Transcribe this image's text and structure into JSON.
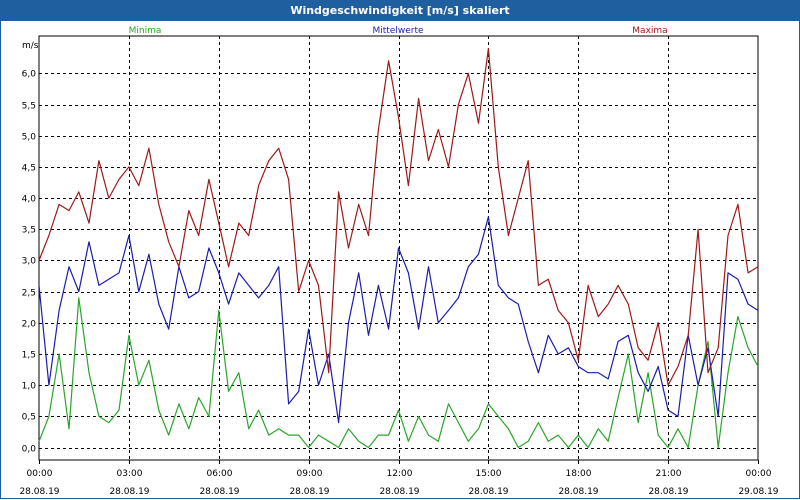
{
  "window": {
    "title": "Windgeschwindigkeit [m/s] skaliert"
  },
  "chart_data": {
    "type": "line",
    "title": "Windgeschwindigkeit [m/s] skaliert",
    "ylabel": "m/s",
    "xlabel": "",
    "grid": true,
    "legend_placement": "top",
    "ylim": [
      -0.2,
      6.6
    ],
    "xlim_hours": [
      0,
      24
    ],
    "y_ticks": [
      "0,0",
      "0,5",
      "1,0",
      "1,5",
      "2,0",
      "2,5",
      "3,0",
      "3,5",
      "4,0",
      "4,5",
      "5,0",
      "5,5",
      "6,0"
    ],
    "x_ticks": [
      {
        "time": "00:00",
        "date": "28.08.19"
      },
      {
        "time": "03:00",
        "date": "28.08.19"
      },
      {
        "time": "06:00",
        "date": "28.08.19"
      },
      {
        "time": "09:00",
        "date": "28.08.19"
      },
      {
        "time": "12:00",
        "date": "28.08.19"
      },
      {
        "time": "15:00",
        "date": "28.08.19"
      },
      {
        "time": "18:00",
        "date": "28.08.19"
      },
      {
        "time": "21:00",
        "date": "28.08.19"
      },
      {
        "time": "00:00",
        "date": "29.08.19"
      }
    ],
    "series": [
      {
        "name": "Minima",
        "color": "#2aa52a",
        "x": [
          0,
          0.33,
          0.67,
          1,
          1.33,
          1.67,
          2,
          2.33,
          2.67,
          3,
          3.33,
          3.67,
          4,
          4.33,
          4.67,
          5,
          5.33,
          5.67,
          6,
          6.33,
          6.67,
          7,
          7.33,
          7.67,
          8,
          8.33,
          8.67,
          9,
          9.33,
          9.67,
          10,
          10.33,
          10.67,
          11,
          11.33,
          11.67,
          12,
          12.33,
          12.67,
          13,
          13.33,
          13.67,
          14,
          14.33,
          14.67,
          15,
          15.33,
          15.67,
          16,
          16.33,
          16.67,
          17,
          17.33,
          17.67,
          18,
          18.33,
          18.67,
          19,
          19.33,
          19.67,
          20,
          20.33,
          20.67,
          21,
          21.33,
          21.67,
          22,
          22.33,
          22.67,
          23,
          23.33,
          23.67,
          24
        ],
        "values": [
          0.1,
          0.5,
          1.5,
          0.3,
          2.4,
          1.2,
          0.5,
          0.4,
          0.6,
          1.8,
          1.0,
          1.4,
          0.6,
          0.2,
          0.7,
          0.3,
          0.8,
          0.5,
          2.2,
          0.9,
          1.2,
          0.3,
          0.6,
          0.2,
          0.3,
          0.2,
          0.2,
          0,
          0.2,
          0.1,
          0,
          0.3,
          0.1,
          0,
          0.2,
          0.2,
          0.6,
          0.1,
          0.5,
          0.2,
          0.1,
          0.7,
          0.4,
          0.1,
          0.3,
          0.7,
          0.5,
          0.3,
          0,
          0.1,
          0.4,
          0.1,
          0.2,
          0,
          0.2,
          0,
          0.3,
          0.1,
          0.8,
          1.5,
          0.4,
          1.2,
          0.2,
          0,
          0.3,
          0,
          1.0,
          1.7,
          0,
          1.2,
          2.1,
          1.6,
          1.3
        ]
      },
      {
        "name": "Mittelwerte",
        "color": "#1c1cb0",
        "x": [
          0,
          0.33,
          0.67,
          1,
          1.33,
          1.67,
          2,
          2.33,
          2.67,
          3,
          3.33,
          3.67,
          4,
          4.33,
          4.67,
          5,
          5.33,
          5.67,
          6,
          6.33,
          6.67,
          7,
          7.33,
          7.67,
          8,
          8.33,
          8.67,
          9,
          9.33,
          9.67,
          10,
          10.33,
          10.67,
          11,
          11.33,
          11.67,
          12,
          12.33,
          12.67,
          13,
          13.33,
          13.67,
          14,
          14.33,
          14.67,
          15,
          15.33,
          15.67,
          16,
          16.33,
          16.67,
          17,
          17.33,
          17.67,
          18,
          18.33,
          18.67,
          19,
          19.33,
          19.67,
          20,
          20.33,
          20.67,
          21,
          21.33,
          21.67,
          22,
          22.33,
          22.67,
          23,
          23.33,
          23.67,
          24
        ],
        "values": [
          2.6,
          1.0,
          2.2,
          2.9,
          2.5,
          3.3,
          2.6,
          2.7,
          2.8,
          3.4,
          2.5,
          3.1,
          2.3,
          1.9,
          2.9,
          2.4,
          2.5,
          3.2,
          2.8,
          2.3,
          2.8,
          2.6,
          2.4,
          2.6,
          2.9,
          0.7,
          0.9,
          1.9,
          1.0,
          1.5,
          0.4,
          2.0,
          2.8,
          1.8,
          2.6,
          1.9,
          3.2,
          2.8,
          1.9,
          2.9,
          2.0,
          2.2,
          2.4,
          2.9,
          3.1,
          3.7,
          2.6,
          2.4,
          2.3,
          1.7,
          1.2,
          1.8,
          1.5,
          1.6,
          1.3,
          1.2,
          1.2,
          1.1,
          1.7,
          1.8,
          1.2,
          0.9,
          1.3,
          0.6,
          0.5,
          1.8,
          1.0,
          1.6,
          0.5,
          2.8,
          2.7,
          2.3,
          2.2
        ]
      },
      {
        "name": "Maxima",
        "color": "#a01818",
        "x": [
          0,
          0.33,
          0.67,
          1,
          1.33,
          1.67,
          2,
          2.33,
          2.67,
          3,
          3.33,
          3.67,
          4,
          4.33,
          4.67,
          5,
          5.33,
          5.67,
          6,
          6.33,
          6.67,
          7,
          7.33,
          7.67,
          8,
          8.33,
          8.67,
          9,
          9.33,
          9.67,
          10,
          10.33,
          10.67,
          11,
          11.33,
          11.67,
          12,
          12.33,
          12.67,
          13,
          13.33,
          13.67,
          14,
          14.33,
          14.67,
          15,
          15.33,
          15.67,
          16,
          16.33,
          16.67,
          17,
          17.33,
          17.67,
          18,
          18.33,
          18.67,
          19,
          19.33,
          19.67,
          20,
          20.33,
          20.67,
          21,
          21.33,
          21.67,
          22,
          22.33,
          22.67,
          23,
          23.33,
          23.67,
          24
        ],
        "values": [
          3.0,
          3.4,
          3.9,
          3.8,
          4.1,
          3.6,
          4.6,
          4.0,
          4.3,
          4.5,
          4.2,
          4.8,
          3.9,
          3.3,
          2.9,
          3.8,
          3.4,
          4.3,
          3.6,
          2.9,
          3.6,
          3.4,
          4.2,
          4.6,
          4.8,
          4.3,
          2.5,
          3.0,
          2.6,
          1.2,
          4.1,
          3.2,
          3.9,
          3.4,
          5.1,
          6.2,
          5.3,
          4.2,
          5.6,
          4.6,
          5.1,
          4.5,
          5.5,
          6.0,
          5.2,
          6.4,
          4.5,
          3.4,
          4.0,
          4.6,
          2.6,
          2.7,
          2.2,
          2.0,
          1.4,
          2.6,
          2.1,
          2.3,
          2.6,
          2.3,
          1.6,
          1.4,
          2.0,
          1.0,
          1.3,
          1.8,
          3.5,
          1.2,
          1.6,
          3.4,
          3.9,
          2.8,
          2.9
        ]
      }
    ]
  }
}
